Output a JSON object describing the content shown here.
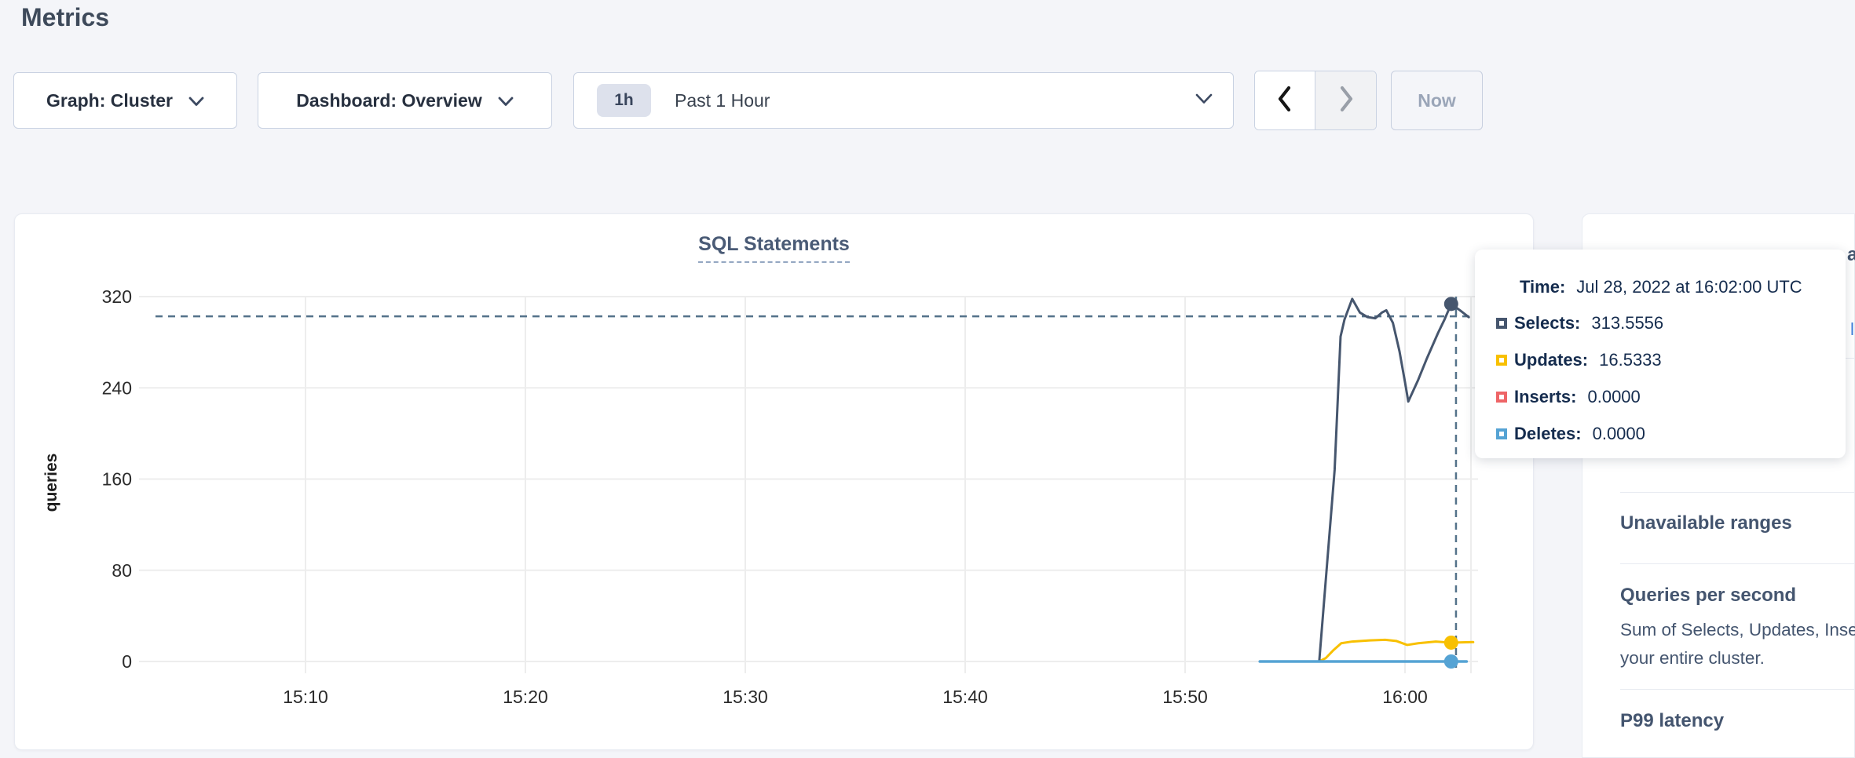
{
  "page": {
    "title": "Metrics"
  },
  "toolbar": {
    "graph_label": "Graph: Cluster",
    "dashboard_label": "Dashboard: Overview",
    "time_badge": "1h",
    "time_label": "Past 1 Hour",
    "now_label": "Now"
  },
  "chart_data": {
    "type": "line",
    "title": "SQL Statements",
    "ylabel": "queries",
    "ylim": [
      0,
      320
    ],
    "y_ticks": [
      0,
      80,
      160,
      240,
      320
    ],
    "t_unit": "minutes since 15:02 UTC",
    "t_domain": [
      0,
      61
    ],
    "x_ticks": [
      {
        "label": "15:10",
        "t": 8
      },
      {
        "label": "15:20",
        "t": 18
      },
      {
        "label": "15:30",
        "t": 28
      },
      {
        "label": "15:40",
        "t": 38
      },
      {
        "label": "15:50",
        "t": 48
      },
      {
        "label": "16:00",
        "t": 58
      }
    ],
    "grid": true,
    "legend_position": "tooltip",
    "series": [
      {
        "name": "Inserts",
        "color": "#ee6567",
        "width": 3,
        "points": [
          [
            51.4,
            0
          ],
          [
            60.8,
            0
          ]
        ]
      },
      {
        "name": "Updates",
        "color": "#f8c000",
        "width": 3,
        "points": [
          [
            51.5,
            0
          ],
          [
            54.1,
            0
          ],
          [
            54.4,
            3
          ],
          [
            54.75,
            10
          ],
          [
            55.1,
            16
          ],
          [
            55.6,
            17.5
          ],
          [
            56.4,
            18.5
          ],
          [
            57.1,
            19
          ],
          [
            57.6,
            18
          ],
          [
            58.1,
            14.5
          ],
          [
            58.6,
            16
          ],
          [
            59.4,
            17.5
          ],
          [
            60.1,
            16.5333
          ],
          [
            61.1,
            17
          ]
        ]
      },
      {
        "name": "Selects",
        "color": "#46566e",
        "width": 3,
        "points": [
          [
            54.1,
            0
          ],
          [
            54.8,
            168
          ],
          [
            55.07,
            285
          ],
          [
            55.25,
            300
          ],
          [
            55.6,
            318
          ],
          [
            55.95,
            306
          ],
          [
            56.3,
            302
          ],
          [
            56.65,
            301
          ],
          [
            56.95,
            306
          ],
          [
            57.15,
            308
          ],
          [
            57.45,
            297
          ],
          [
            57.75,
            272
          ],
          [
            58.0,
            245
          ],
          [
            58.15,
            228
          ],
          [
            58.6,
            247
          ],
          [
            59.0,
            266
          ],
          [
            59.5,
            288
          ],
          [
            59.8,
            300
          ],
          [
            60.1,
            313.5556
          ],
          [
            60.5,
            308
          ],
          [
            60.9,
            302
          ]
        ]
      },
      {
        "name": "Deletes",
        "color": "#55a3d4",
        "width": 3.5,
        "points": [
          [
            51.4,
            0
          ],
          [
            60.8,
            0
          ]
        ]
      }
    ],
    "crosshair": {
      "t": 60.32,
      "value": 302.7,
      "color": "#54728a"
    },
    "hover_dots": [
      {
        "series": "Selects",
        "t": 60.1,
        "value": 313.5556,
        "color": "#46566e"
      },
      {
        "series": "Updates",
        "t": 60.1,
        "value": 16.5333,
        "color": "#f8c000"
      },
      {
        "series": "Deletes",
        "t": 60.1,
        "value": 0,
        "color": "#55a3d4"
      }
    ]
  },
  "tooltip": {
    "time_label": "Time:",
    "time_value": "Jul 28, 2022 at 16:02:00 UTC",
    "rows": [
      {
        "label": "Selects:",
        "value": "313.5556",
        "color": "#46566e"
      },
      {
        "label": "Updates:",
        "value": "16.5333",
        "color": "#f8c000"
      },
      {
        "label": "Inserts:",
        "value": "0.0000",
        "color": "#ee6567"
      },
      {
        "label": "Deletes:",
        "value": "0.0000",
        "color": "#55a3d4"
      }
    ]
  },
  "sidebar": {
    "clipped_top_fragment": "a",
    "clipped_link_fragment": "li",
    "sections": [
      {
        "title": "Unavailable ranges",
        "description_lines": []
      },
      {
        "title": "Queries per second",
        "description_lines": [
          "Sum of Selects, Updates, Inserts",
          "your entire cluster."
        ]
      },
      {
        "title": "P99 latency",
        "description_lines": []
      }
    ]
  }
}
